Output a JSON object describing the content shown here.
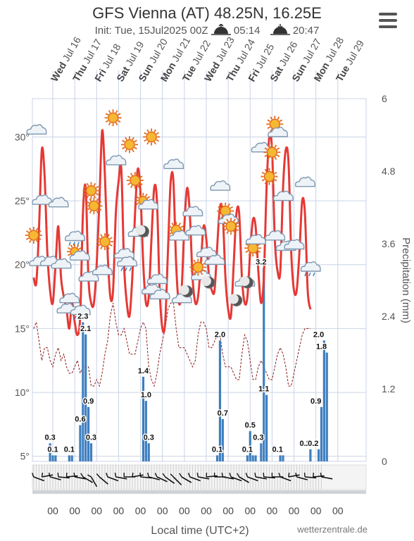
{
  "header": {
    "title": "GFS Vienna (AT) 48.25N, 16.25E",
    "init": "Init: Tue, 15Jul2025 00Z",
    "sunrise": "05:14",
    "sunset": "20:47"
  },
  "footer": {
    "xlabel": "Local time (UTC+2)",
    "brand": "wetterzentrale.de",
    "hour_label": "00"
  },
  "colors": {
    "temperature": "#e53935",
    "dewpoint": "#8b1a1a",
    "precipitation": "#3f7fbf",
    "grid": "#c9d3e6"
  },
  "chart_data": {
    "type": "line",
    "x_type": "datetime",
    "x_start": "2025-07-15 02:00",
    "x_step_hours": 3,
    "days": [
      {
        "dow": "Wed",
        "date": "Jul 16"
      },
      {
        "dow": "Thu",
        "date": "Jul 17"
      },
      {
        "dow": "Fri",
        "date": "Jul 18"
      },
      {
        "dow": "Sat",
        "date": "Jul 19"
      },
      {
        "dow": "Sun",
        "date": "Jul 20"
      },
      {
        "dow": "Mon",
        "date": "Jul 21"
      },
      {
        "dow": "Tue",
        "date": "Jul 22"
      },
      {
        "dow": "Wed",
        "date": "Jul 23"
      },
      {
        "dow": "Thu",
        "date": "Jul 24"
      },
      {
        "dow": "Fri",
        "date": "Jul 25"
      },
      {
        "dow": "Sat",
        "date": "Jul 26"
      },
      {
        "dow": "Sun",
        "date": "Jul 27"
      },
      {
        "dow": "Mon",
        "date": "Jul 28"
      },
      {
        "dow": "Tue",
        "date": "Jul 29"
      }
    ],
    "y_left": {
      "ylim": [
        4.6,
        33
      ],
      "ticks": [
        5,
        10,
        15,
        20,
        25,
        30
      ],
      "tick_labels": [
        "5°",
        "10°",
        "15°",
        "20°",
        "25°",
        "30°"
      ]
    },
    "y_right": {
      "label": "Precipitation (mm)",
      "ylim": [
        0,
        6
      ],
      "ticks": [
        0,
        1.2,
        2.4,
        3.6,
        4.8,
        6
      ],
      "tick_labels": [
        "0",
        "1.2",
        "2.4",
        "3.6",
        "4.8",
        "6"
      ]
    },
    "series": [
      {
        "name": "temperature",
        "values": [
          19,
          18.6,
          23,
          29,
          27,
          21,
          18,
          17,
          20,
          23,
          19,
          17.5,
          16.5,
          15,
          17,
          15.5,
          14.5,
          16,
          24,
          26,
          19,
          17,
          17,
          20,
          25,
          30.5,
          27,
          21,
          17.5,
          18,
          24,
          26.5,
          27.5,
          20,
          17,
          16,
          19,
          24,
          27.5,
          25.5,
          20,
          17,
          17.5,
          22,
          26,
          25,
          18,
          15,
          15.5,
          21,
          26.5,
          26.5,
          20,
          17,
          18,
          23,
          26,
          24,
          19,
          17,
          17.5,
          20,
          23,
          22,
          19,
          18,
          18,
          21.5,
          24.5,
          24,
          19,
          16.5,
          16,
          20,
          24,
          24,
          19,
          17,
          17.5,
          21,
          23.5,
          23,
          19.5,
          17,
          19,
          26,
          30,
          29,
          22,
          19.5,
          19.5,
          26,
          29,
          28,
          21,
          18,
          18,
          21,
          25,
          24,
          18,
          16.5
        ]
      },
      {
        "name": "dewpoint",
        "values": [
          15,
          15.5,
          14,
          12.5,
          13.5,
          13.5,
          12.5,
          12,
          13,
          13.5,
          12.5,
          13,
          12,
          11.5,
          11.5,
          12,
          12.5,
          11.5,
          12,
          12,
          12,
          10.5,
          10.5,
          11,
          10.5,
          11.5,
          13,
          14,
          16,
          17,
          15.5,
          14.5,
          14.5,
          15,
          14,
          13,
          13,
          13,
          14,
          15,
          15.5,
          15,
          12,
          11,
          10.5,
          11.5,
          13,
          14,
          15,
          16.5,
          17,
          17,
          15,
          13.5,
          13.5,
          13.5,
          13,
          12.5,
          12,
          12.5,
          14.5,
          15.5,
          15.5,
          15,
          13.5,
          13.5,
          14,
          14.5,
          14.5,
          13,
          12,
          12,
          12,
          11.5,
          11,
          11,
          13,
          14.5,
          14,
          12.5,
          11,
          11,
          12,
          12.5,
          12,
          11.5,
          11,
          11,
          12,
          13,
          13.5,
          13,
          12,
          10.5,
          10.5,
          11.5,
          12.5,
          13.5,
          14.5,
          15,
          15,
          15
        ]
      },
      {
        "name": "precipitation",
        "values": [
          0,
          0,
          0,
          0,
          0,
          0,
          0.3,
          0.1,
          0.1,
          0,
          0,
          0,
          0,
          0.1,
          0.1,
          0,
          0,
          0.6,
          2.3,
          2.1,
          0.9,
          0.3,
          0,
          0,
          0,
          0,
          0,
          0,
          0,
          0,
          0,
          0,
          0,
          0,
          0,
          0,
          0,
          0,
          0,
          0,
          1.4,
          1.0,
          0.3,
          0,
          0,
          0,
          0,
          0,
          0,
          0,
          0,
          0,
          0,
          0,
          0,
          0,
          0,
          0,
          0,
          0,
          0,
          0,
          0,
          0,
          0,
          0,
          0,
          0.1,
          2.0,
          0.7,
          0,
          0,
          0,
          0,
          0,
          0,
          0,
          0,
          0.1,
          0.5,
          0.1,
          0.1,
          0,
          0.3,
          3.2,
          1.1,
          0,
          0,
          0,
          0,
          0.1,
          0.1,
          0,
          0,
          0,
          0,
          0,
          0,
          0,
          0,
          0,
          0.2,
          0,
          0,
          0.2,
          0.9,
          2.0,
          1.8
        ]
      }
    ],
    "annotations": [
      {
        "label": "0.3",
        "x_index": 6,
        "y": 0.3
      },
      {
        "label": "0.1",
        "x_index": 7,
        "y": 0.1
      },
      {
        "label": "0.1",
        "x_index": 13,
        "y": 0.1
      },
      {
        "label": "0.6",
        "x_index": 17,
        "y": 0.6
      },
      {
        "label": "2.3",
        "x_index": 18,
        "y": 2.3
      },
      {
        "label": "2.1",
        "x_index": 19,
        "y": 2.1
      },
      {
        "label": "0.9",
        "x_index": 20,
        "y": 0.9
      },
      {
        "label": "0.3",
        "x_index": 21,
        "y": 0.3
      },
      {
        "label": "1.4",
        "x_index": 40,
        "y": 1.4
      },
      {
        "label": "1.0",
        "x_index": 41,
        "y": 1.0
      },
      {
        "label": "0.3",
        "x_index": 42,
        "y": 0.3
      },
      {
        "label": "2.0",
        "x_index": 68,
        "y": 2.0
      },
      {
        "label": "0.7",
        "x_index": 69,
        "y": 0.7
      },
      {
        "label": "0.1",
        "x_index": 67,
        "y": 0.1
      },
      {
        "label": "0.5",
        "x_index": 79,
        "y": 0.5
      },
      {
        "label": "0.1",
        "x_index": 78,
        "y": 0.1
      },
      {
        "label": "0.3",
        "x_index": 82,
        "y": 0.3
      },
      {
        "label": "3.2",
        "x_index": 83,
        "y": 3.2
      },
      {
        "label": "1.1",
        "x_index": 84,
        "y": 1.1
      },
      {
        "label": "0.1",
        "x_index": 89,
        "y": 0.1
      },
      {
        "label": "0.2",
        "x_index": 99,
        "y": 0.2
      },
      {
        "label": "0.2",
        "x_index": 102,
        "y": 0.2
      },
      {
        "label": "0.9",
        "x_index": 103,
        "y": 0.9
      },
      {
        "label": "2.0",
        "x_index": 104,
        "y": 2.0
      },
      {
        "label": "1.8",
        "x_index": 105,
        "y": 1.8
      }
    ],
    "weather_icons": [
      {
        "type": "cloud",
        "time_index": 1,
        "temp": 30.5
      },
      {
        "type": "sun",
        "time_index": 0,
        "temp": 22.3
      },
      {
        "type": "cloud",
        "time_index": 3,
        "temp": 25.0
      },
      {
        "type": "cloud",
        "time_index": 9,
        "temp": 24.8
      },
      {
        "type": "cloud",
        "time_index": 2,
        "temp": 20.2
      },
      {
        "type": "cloud",
        "time_index": 6,
        "temp": 20.2
      },
      {
        "type": "cloud",
        "time_index": 10,
        "temp": 20.0
      },
      {
        "type": "rain",
        "time_index": 15,
        "temp": 22.0
      },
      {
        "type": "sun-cloud",
        "time_index": 16,
        "temp": 20.8
      },
      {
        "type": "cloud",
        "time_index": 13,
        "temp": 17.3
      },
      {
        "type": "cloud",
        "time_index": 12,
        "temp": 16.5
      },
      {
        "type": "rain",
        "time_index": 17,
        "temp": 16.2
      },
      {
        "type": "cloud",
        "time_index": 20,
        "temp": 19.0
      },
      {
        "type": "sun",
        "time_index": 21,
        "temp": 25.8
      },
      {
        "type": "sun",
        "time_index": 22,
        "temp": 24.6
      },
      {
        "type": "sun",
        "time_index": 26,
        "temp": 21.8
      },
      {
        "type": "cloud",
        "time_index": 25,
        "temp": 19.5
      },
      {
        "type": "sun",
        "time_index": 29,
        "temp": 31.5
      },
      {
        "type": "cloud",
        "time_index": 30,
        "temp": 28.1
      },
      {
        "type": "cloud",
        "time_index": 33,
        "temp": 20.8
      },
      {
        "type": "rain",
        "time_index": 34,
        "temp": 20.0
      },
      {
        "type": "sun",
        "time_index": 35,
        "temp": 29.4
      },
      {
        "type": "sun",
        "time_index": 37,
        "temp": 26.6
      },
      {
        "type": "cloud",
        "time_index": 38,
        "temp": 22.5
      },
      {
        "type": "moon",
        "time_index": 40,
        "temp": 22.6
      },
      {
        "type": "sun-cloud",
        "time_index": 41,
        "temp": 24.8
      },
      {
        "type": "sun",
        "time_index": 43,
        "temp": 30.0
      },
      {
        "type": "cloud",
        "time_index": 45,
        "temp": 18.8
      },
      {
        "type": "cloud",
        "time_index": 43,
        "temp": 18.0
      },
      {
        "type": "cloud",
        "time_index": 46,
        "temp": 17.6
      },
      {
        "type": "cloud",
        "time_index": 51,
        "temp": 27.8
      },
      {
        "type": "sun",
        "time_index": 52,
        "temp": 22.7
      },
      {
        "type": "cloud",
        "time_index": 53,
        "temp": 22.2
      },
      {
        "type": "cloud",
        "time_index": 54,
        "temp": 17.3
      },
      {
        "type": "moon",
        "time_index": 56,
        "temp": 17.9
      },
      {
        "type": "cloud",
        "time_index": 58,
        "temp": 24.1
      },
      {
        "type": "cloud",
        "time_index": 59,
        "temp": 22.6
      },
      {
        "type": "cloud",
        "time_index": 61,
        "temp": 19.1
      },
      {
        "type": "sun",
        "time_index": 60,
        "temp": 19.8
      },
      {
        "type": "cloud",
        "time_index": 63,
        "temp": 20.9
      },
      {
        "type": "moon",
        "time_index": 64,
        "temp": 18.6
      },
      {
        "type": "cloud",
        "time_index": 66,
        "temp": 20.3
      },
      {
        "type": "cloud",
        "time_index": 68,
        "temp": 26.1
      },
      {
        "type": "sun",
        "time_index": 70,
        "temp": 24.2
      },
      {
        "type": "cloud",
        "time_index": 71,
        "temp": 23.5
      },
      {
        "type": "sun",
        "time_index": 72,
        "temp": 23.0
      },
      {
        "type": "moon",
        "time_index": 74,
        "temp": 17.2
      },
      {
        "type": "cloud",
        "time_index": 77,
        "temp": 18.6
      },
      {
        "type": "moon",
        "time_index": 78,
        "temp": 18.6
      },
      {
        "type": "sun",
        "time_index": 80,
        "temp": 21.3
      },
      {
        "type": "cloud",
        "time_index": 81,
        "temp": 21.9
      },
      {
        "type": "cloud",
        "time_index": 83,
        "temp": 29.1
      },
      {
        "type": "sun",
        "time_index": 87,
        "temp": 28.8
      },
      {
        "type": "sun",
        "time_index": 88,
        "temp": 31.0
      },
      {
        "type": "cloud",
        "time_index": 89,
        "temp": 30.3
      },
      {
        "type": "sun",
        "time_index": 86,
        "temp": 26.9
      },
      {
        "type": "cloud",
        "time_index": 91,
        "temp": 25.3
      },
      {
        "type": "cloud",
        "time_index": 88,
        "temp": 22.2
      },
      {
        "type": "cloud",
        "time_index": 92,
        "temp": 21.4
      },
      {
        "type": "cloud",
        "time_index": 95,
        "temp": 21.5
      },
      {
        "type": "cloud",
        "time_index": 99,
        "temp": 26.4
      },
      {
        "type": "rain",
        "time_index": 101,
        "temp": 19.6
      }
    ],
    "grid": true,
    "legend": "none"
  }
}
